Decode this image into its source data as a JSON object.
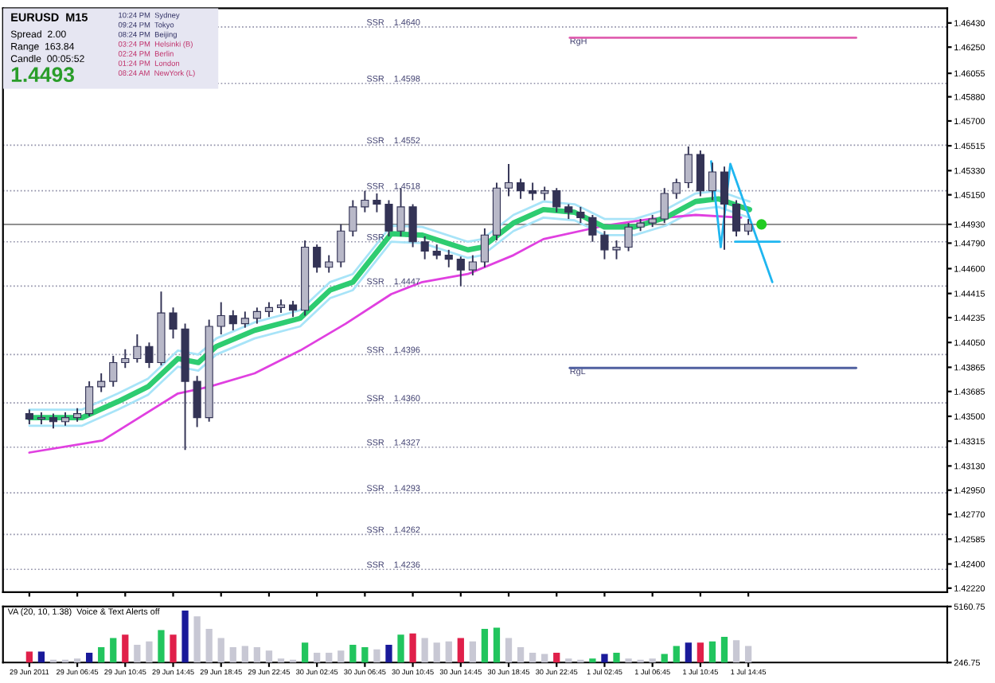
{
  "chart_data": [
    {
      "type": "candlestick",
      "title": "EURUSD  M15",
      "color": "#333355",
      "annotations": [
        "Spread  2.00",
        "Range  163.84",
        "Candle  00:05:52",
        "1.4493",
        "10:24 PM  Sydney",
        "09:24 PM  Tokyo",
        "08:24 PM  Beijing",
        "03:24 PM  Helsinki (B)",
        "02:24 PM  Berlin",
        "01:24 PM  London",
        "08:24 AM  NewYork (L)"
      ],
      "x": [
        "2011-06-29T02:45",
        "2011-06-29T03:45",
        "2011-06-29T04:45",
        "2011-06-29T05:45",
        "2011-06-29T06:45",
        "2011-06-29T07:45",
        "2011-06-29T08:45",
        "2011-06-29T09:45",
        "2011-06-29T10:45",
        "2011-06-29T11:45",
        "2011-06-29T12:45",
        "2011-06-29T13:45",
        "2011-06-29T14:45",
        "2011-06-29T15:45",
        "2011-06-29T16:45",
        "2011-06-29T17:45",
        "2011-06-29T18:45",
        "2011-06-29T19:45",
        "2011-06-29T20:45",
        "2011-06-29T21:45",
        "2011-06-29T22:45",
        "2011-06-29T23:45",
        "2011-06-30T00:45",
        "2011-06-30T01:45",
        "2011-06-30T02:45",
        "2011-06-30T03:45",
        "2011-06-30T04:45",
        "2011-06-30T05:45",
        "2011-06-30T06:45",
        "2011-06-30T07:45",
        "2011-06-30T08:45",
        "2011-06-30T09:45",
        "2011-06-30T10:45",
        "2011-06-30T11:45",
        "2011-06-30T12:45",
        "2011-06-30T13:45",
        "2011-06-30T14:45",
        "2011-06-30T15:45",
        "2011-06-30T16:45",
        "2011-06-30T17:45",
        "2011-06-30T18:45",
        "2011-06-30T19:45",
        "2011-06-30T20:45",
        "2011-06-30T21:45",
        "2011-06-30T22:45",
        "2011-06-30T23:45",
        "2011-07-01T00:45",
        "2011-07-01T01:45",
        "2011-07-01T02:45",
        "2011-07-01T03:45",
        "2011-07-01T04:45",
        "2011-07-01T05:45",
        "2011-07-01T06:45",
        "2011-07-01T07:45",
        "2011-07-01T08:45",
        "2011-07-01T09:45",
        "2011-07-01T10:45",
        "2011-07-01T11:45",
        "2011-07-01T12:45",
        "2011-07-01T13:45",
        "2011-07-01T14:45"
      ],
      "ohlc": [
        [
          1.4352,
          1.4355,
          1.4344,
          1.4348
        ],
        [
          1.4348,
          1.4353,
          1.4344,
          1.4349
        ],
        [
          1.4349,
          1.4352,
          1.4341,
          1.4346
        ],
        [
          1.4346,
          1.4353,
          1.4343,
          1.4349
        ],
        [
          1.4349,
          1.4356,
          1.4346,
          1.4352
        ],
        [
          1.4352,
          1.4376,
          1.435,
          1.4372
        ],
        [
          1.4372,
          1.4382,
          1.4368,
          1.4376
        ],
        [
          1.4376,
          1.4395,
          1.4372,
          1.439
        ],
        [
          1.439,
          1.44,
          1.4386,
          1.4393
        ],
        [
          1.4393,
          1.4411,
          1.439,
          1.4402
        ],
        [
          1.4402,
          1.4405,
          1.4386,
          1.439
        ],
        [
          1.439,
          1.4443,
          1.4388,
          1.4427
        ],
        [
          1.4427,
          1.4431,
          1.4408,
          1.4415
        ],
        [
          1.4415,
          1.4419,
          1.4325,
          1.4376
        ],
        [
          1.4376,
          1.438,
          1.4342,
          1.4349
        ],
        [
          1.4349,
          1.4422,
          1.4346,
          1.4417
        ],
        [
          1.4417,
          1.4435,
          1.4411,
          1.4425
        ],
        [
          1.4425,
          1.4429,
          1.4414,
          1.4419
        ],
        [
          1.4419,
          1.4428,
          1.4416,
          1.4423
        ],
        [
          1.4423,
          1.4431,
          1.4419,
          1.4428
        ],
        [
          1.4428,
          1.4435,
          1.4424,
          1.4431
        ],
        [
          1.4431,
          1.4437,
          1.4427,
          1.4433
        ],
        [
          1.4433,
          1.4436,
          1.4424,
          1.4429
        ],
        [
          1.4429,
          1.4481,
          1.4425,
          1.4476
        ],
        [
          1.4476,
          1.4478,
          1.4457,
          1.4461
        ],
        [
          1.4461,
          1.447,
          1.4457,
          1.4465
        ],
        [
          1.4465,
          1.4493,
          1.4461,
          1.4488
        ],
        [
          1.4488,
          1.4511,
          1.4484,
          1.4506
        ],
        [
          1.4506,
          1.4518,
          1.4502,
          1.4511
        ],
        [
          1.4511,
          1.4516,
          1.4502,
          1.4508
        ],
        [
          1.4508,
          1.4511,
          1.4484,
          1.4488
        ],
        [
          1.4488,
          1.452,
          1.4484,
          1.4506
        ],
        [
          1.4506,
          1.4508,
          1.4476,
          1.448
        ],
        [
          1.448,
          1.4484,
          1.4467,
          1.4473
        ],
        [
          1.4473,
          1.4478,
          1.4467,
          1.447
        ],
        [
          1.447,
          1.4474,
          1.4461,
          1.4467
        ],
        [
          1.4467,
          1.4469,
          1.4447,
          1.4459
        ],
        [
          1.4459,
          1.447,
          1.4455,
          1.4465
        ],
        [
          1.4465,
          1.449,
          1.4461,
          1.4485
        ],
        [
          1.4485,
          1.4524,
          1.4481,
          1.452
        ],
        [
          1.452,
          1.4538,
          1.4514,
          1.4524
        ],
        [
          1.4524,
          1.4527,
          1.4512,
          1.4518
        ],
        [
          1.4518,
          1.4524,
          1.4511,
          1.4516
        ],
        [
          1.4516,
          1.4521,
          1.4511,
          1.4518
        ],
        [
          1.4518,
          1.452,
          1.4502,
          1.4506
        ],
        [
          1.4506,
          1.4508,
          1.4497,
          1.4502
        ],
        [
          1.4502,
          1.4506,
          1.4494,
          1.4498
        ],
        [
          1.4498,
          1.45,
          1.448,
          1.4485
        ],
        [
          1.4485,
          1.4488,
          1.4467,
          1.4474
        ],
        [
          1.4474,
          1.4481,
          1.4467,
          1.4476
        ],
        [
          1.4476,
          1.4494,
          1.4473,
          1.4491
        ],
        [
          1.4491,
          1.4497,
          1.4488,
          1.4494
        ],
        [
          1.4494,
          1.45,
          1.4491,
          1.4497
        ],
        [
          1.4497,
          1.452,
          1.4494,
          1.4516
        ],
        [
          1.4516,
          1.4527,
          1.4512,
          1.4524
        ],
        [
          1.4524,
          1.4551,
          1.452,
          1.4545
        ],
        [
          1.4545,
          1.4548,
          1.4514,
          1.4518
        ],
        [
          1.4518,
          1.4539,
          1.4511,
          1.4532
        ],
        [
          1.4532,
          1.4536,
          1.4474,
          1.4508
        ],
        [
          1.4508,
          1.4511,
          1.4484,
          1.4488
        ],
        [
          1.4488,
          1.4497,
          1.4485,
          1.4493
        ]
      ],
      "series": [
        {
          "type": "line",
          "color": "#a8e4f8",
          "x": [
            "2011-06-29T02:45",
            "2011-06-29T07:09",
            "2011-06-29T10:09",
            "2011-06-29T12:39",
            "2011-06-29T15:09",
            "2011-06-29T16:51",
            "2011-06-29T18:21",
            "2011-06-29T21:33",
            "2011-06-30T01:21",
            "2011-06-30T03:51",
            "2011-06-30T05:45",
            "2011-06-30T08:57",
            "2011-06-30T11:33",
            "2011-06-30T15:21",
            "2011-06-30T16:33",
            "2011-06-30T19:09",
            "2011-06-30T21:39",
            "2011-07-01T00:15",
            "2011-07-01T02:45",
            "2011-07-01T05:15",
            "2011-07-01T07:51",
            "2011-07-01T10:21",
            "2011-07-01T12:15",
            "2011-07-01T14:09",
            "2011-07-01T14:51"
          ],
          "values": [
            1.4355,
            1.4355,
            1.4367,
            1.4378,
            1.4399,
            1.4396,
            1.4408,
            1.442,
            1.4429,
            1.445,
            1.4456,
            1.4492,
            1.4491,
            1.448,
            1.4482,
            1.45,
            1.451,
            1.4508,
            1.4497,
            1.4497,
            1.4504,
            1.4516,
            1.4518,
            1.4512,
            1.451
          ]
        },
        {
          "type": "line",
          "color": "#a8e4f8",
          "x": [
            "2011-06-29T02:45",
            "2011-06-29T07:09",
            "2011-06-29T10:09",
            "2011-06-29T12:39",
            "2011-06-29T15:09",
            "2011-06-29T16:51",
            "2011-06-29T18:21",
            "2011-06-29T21:33",
            "2011-06-30T01:21",
            "2011-06-30T03:51",
            "2011-06-30T05:45",
            "2011-06-30T08:57",
            "2011-06-30T11:33",
            "2011-06-30T15:21",
            "2011-06-30T16:33",
            "2011-06-30T19:09",
            "2011-06-30T21:39",
            "2011-07-01T00:15",
            "2011-07-01T02:45",
            "2011-07-01T05:15",
            "2011-07-01T07:51",
            "2011-07-01T10:21",
            "2011-07-01T12:15",
            "2011-07-01T14:09",
            "2011-07-01T14:51"
          ],
          "values": [
            1.4343,
            1.4343,
            1.4355,
            1.4366,
            1.4387,
            1.4384,
            1.4396,
            1.4408,
            1.4417,
            1.4438,
            1.4444,
            1.448,
            1.4479,
            1.4468,
            1.447,
            1.4488,
            1.4498,
            1.4496,
            1.4485,
            1.4485,
            1.4492,
            1.4504,
            1.4506,
            1.45,
            1.4498
          ]
        },
        {
          "type": "line",
          "color": "#e040e0",
          "x": [
            "2011-06-29T02:45",
            "2011-06-29T08:51",
            "2011-06-29T15:09",
            "2011-06-29T17:45",
            "2011-06-29T21:33",
            "2011-06-30T01:21",
            "2011-06-30T05:09",
            "2011-06-30T08:57",
            "2011-06-30T11:33",
            "2011-06-30T15:21",
            "2011-06-30T19:09",
            "2011-06-30T21:39",
            "2011-07-01T02:45",
            "2011-07-01T06:33",
            "2011-07-01T10:21",
            "2011-07-01T14:09"
          ],
          "values": [
            1.4323,
            1.4332,
            1.4367,
            1.4372,
            1.4382,
            1.4399,
            1.4419,
            1.4441,
            1.445,
            1.4456,
            1.447,
            1.4482,
            1.4492,
            1.4497,
            1.45,
            1.4498
          ]
        },
        {
          "type": "line",
          "color": "#2ecc71",
          "x": [
            "2011-06-29T02:45",
            "2011-06-29T07:09",
            "2011-06-29T10:09",
            "2011-06-29T12:39",
            "2011-06-29T15:09",
            "2011-06-29T16:51",
            "2011-06-29T18:21",
            "2011-06-29T21:33",
            "2011-06-30T01:21",
            "2011-06-30T03:51",
            "2011-06-30T05:45",
            "2011-06-30T08:57",
            "2011-06-30T11:33",
            "2011-06-30T15:21",
            "2011-06-30T16:33",
            "2011-06-30T19:09",
            "2011-06-30T21:39",
            "2011-07-01T00:15",
            "2011-07-01T02:45",
            "2011-07-01T05:15",
            "2011-07-01T07:51",
            "2011-07-01T10:21",
            "2011-07-01T12:15",
            "2011-07-01T14:09",
            "2011-07-01T14:51"
          ],
          "values": [
            1.4349,
            1.4349,
            1.4361,
            1.4372,
            1.4393,
            1.439,
            1.4402,
            1.4414,
            1.4423,
            1.4444,
            1.445,
            1.4486,
            1.4485,
            1.4474,
            1.4476,
            1.4494,
            1.4504,
            1.4502,
            1.4491,
            1.4491,
            1.4498,
            1.451,
            1.4512,
            1.4506,
            1.4504
          ]
        },
        {
          "type": "line",
          "name": "RgH",
          "color": "#e060b0",
          "x": [
            "2011-06-30T23:51",
            "2011-07-01T23:45"
          ],
          "values": [
            1.4632,
            1.4632
          ]
        },
        {
          "type": "line",
          "name": "RgL",
          "color": "#5060a0",
          "x": [
            "2011-06-30T23:51",
            "2011-07-01T23:45"
          ],
          "values": [
            1.4386,
            1.4386
          ]
        },
        {
          "type": "line",
          "color": "#1fb6f0",
          "x": [
            "2011-07-01T11:39",
            "2011-07-01T12:27",
            "2011-07-01T13:15",
            "2011-07-01T16:45"
          ],
          "values": [
            1.454,
            1.4476,
            1.4538,
            1.445
          ]
        },
        {
          "type": "line",
          "color": "#1fb6f0",
          "x": [
            "2011-07-01T13:39",
            "2011-07-01T17:21"
          ],
          "values": [
            1.448,
            1.448
          ]
        },
        {
          "type": "scatter",
          "color": "#22cc22",
          "x": [
            "2011-07-01T15:51"
          ],
          "values": [
            1.4493
          ]
        }
      ],
      "ref_lines": [
        {
          "axis": "y",
          "value": 1.464,
          "label": "SSR    1.4640",
          "color": "#9090a8",
          "line_style": "dotted"
        },
        {
          "axis": "y",
          "value": 1.4598,
          "label": "SSR    1.4598",
          "color": "#9090a8",
          "line_style": "dotted"
        },
        {
          "axis": "y",
          "value": 1.4552,
          "label": "SSR    1.4552",
          "color": "#9090a8",
          "line_style": "dotted"
        },
        {
          "axis": "y",
          "value": 1.4518,
          "label": "SSR    1.4518",
          "color": "#9090a8",
          "line_style": "dotted"
        },
        {
          "axis": "y",
          "value": 1.448,
          "label": "SSR",
          "color": "#9090a8",
          "line_style": "dotted"
        },
        {
          "axis": "y",
          "value": 1.4447,
          "label": "SSR    1.4447",
          "color": "#9090a8",
          "line_style": "dotted"
        },
        {
          "axis": "y",
          "value": 1.4396,
          "label": "SSR    1.4396",
          "color": "#9090a8",
          "line_style": "dotted"
        },
        {
          "axis": "y",
          "value": 1.436,
          "label": "SSR    1.4360",
          "color": "#9090a8",
          "line_style": "dotted"
        },
        {
          "axis": "y",
          "value": 1.4327,
          "label": "SSR    1.4327",
          "color": "#9090a8",
          "line_style": "dotted"
        },
        {
          "axis": "y",
          "value": 1.4293,
          "label": "SSR    1.4293",
          "color": "#9090a8",
          "line_style": "dotted"
        },
        {
          "axis": "y",
          "value": 1.4262,
          "label": "SSR    1.4262",
          "color": "#9090a8",
          "line_style": "dotted"
        },
        {
          "axis": "y",
          "value": 1.4236,
          "label": "SSR    1.4236",
          "color": "#9090a8",
          "line_style": "dotted"
        },
        {
          "axis": "y",
          "value": 1.4493,
          "color": "#808080",
          "line_style": "solid"
        }
      ],
      "xlim": [
        "2011-06-29T00:33",
        "2011-07-02T07:21"
      ],
      "xticks": [
        {
          "value": "2011-06-29T02:45",
          "label": null
        },
        {
          "value": "2011-06-29T06:45",
          "label": null
        },
        {
          "value": "2011-06-29T10:45",
          "label": null
        },
        {
          "value": "2011-06-29T14:45",
          "label": null
        },
        {
          "value": "2011-06-29T18:45",
          "label": null
        },
        {
          "value": "2011-06-29T22:45",
          "label": null
        },
        {
          "value": "2011-06-30T02:45",
          "label": null
        },
        {
          "value": "2011-06-30T06:45",
          "label": null
        },
        {
          "value": "2011-06-30T10:45",
          "label": null
        },
        {
          "value": "2011-06-30T14:45",
          "label": null
        },
        {
          "value": "2011-06-30T18:45",
          "label": null
        },
        {
          "value": "2011-06-30T22:45",
          "label": null
        },
        {
          "value": "2011-07-01T02:45",
          "label": null
        },
        {
          "value": "2011-07-01T06:45",
          "label": null
        },
        {
          "value": "2011-07-01T10:45",
          "label": null
        },
        {
          "value": "2011-07-01T14:45",
          "label": null
        }
      ],
      "ylim": [
        1.4219,
        1.4654
      ],
      "yticks": [
        {
          "value": 1.4643,
          "label": "1.46430"
        },
        {
          "value": 1.4625,
          "label": "1.46250"
        },
        {
          "value": 1.46055,
          "label": "1.46055"
        },
        {
          "value": 1.4588,
          "label": "1.45880"
        },
        {
          "value": 1.457,
          "label": "1.45700"
        },
        {
          "value": 1.45515,
          "label": "1.45515"
        },
        {
          "value": 1.4533,
          "label": "1.45330"
        },
        {
          "value": 1.4515,
          "label": "1.45150"
        },
        {
          "value": 1.4493,
          "label": "1.44930"
        },
        {
          "value": 1.4479,
          "label": "1.44790"
        },
        {
          "value": 1.446,
          "label": "1.44600"
        },
        {
          "value": 1.44415,
          "label": "1.44415"
        },
        {
          "value": 1.44235,
          "label": "1.44235"
        },
        {
          "value": 1.4405,
          "label": "1.44050"
        },
        {
          "value": 1.43865,
          "label": "1.43865"
        },
        {
          "value": 1.43685,
          "label": "1.43685"
        },
        {
          "value": 1.435,
          "label": "1.43500"
        },
        {
          "value": 1.43315,
          "label": "1.43315"
        },
        {
          "value": 1.4313,
          "label": "1.43130"
        },
        {
          "value": 1.4295,
          "label": "1.42950"
        },
        {
          "value": 1.4277,
          "label": "1.42770"
        },
        {
          "value": 1.42585,
          "label": "1.42585"
        },
        {
          "value": 1.424,
          "label": "1.42400"
        },
        {
          "value": 1.4222,
          "label": "1.42220"
        }
      ],
      "tick_labels": "y"
    },
    {
      "type": "bar",
      "title": "VA (20, 10, 1.38)  Voice & Text Alerts off",
      "x": [
        "2011-06-29T02:45",
        "2011-06-29T03:45",
        "2011-06-29T04:45",
        "2011-06-29T05:45",
        "2011-06-29T06:45",
        "2011-06-29T07:45",
        "2011-06-29T08:45",
        "2011-06-29T09:45",
        "2011-06-29T10:45",
        "2011-06-29T11:45",
        "2011-06-29T12:45",
        "2011-06-29T13:45",
        "2011-06-29T14:45",
        "2011-06-29T15:45",
        "2011-06-29T16:45",
        "2011-06-29T17:45",
        "2011-06-29T18:45",
        "2011-06-29T19:45",
        "2011-06-29T20:45",
        "2011-06-29T21:45",
        "2011-06-29T22:45",
        "2011-06-29T23:45",
        "2011-06-30T00:45",
        "2011-06-30T01:45",
        "2011-06-30T02:45",
        "2011-06-30T03:45",
        "2011-06-30T04:45",
        "2011-06-30T05:45",
        "2011-06-30T06:45",
        "2011-06-30T07:45",
        "2011-06-30T08:45",
        "2011-06-30T09:45",
        "2011-06-30T10:45",
        "2011-06-30T11:45",
        "2011-06-30T12:45",
        "2011-06-30T13:45",
        "2011-06-30T14:45",
        "2011-06-30T15:45",
        "2011-06-30T16:45",
        "2011-06-30T17:45",
        "2011-06-30T18:45",
        "2011-06-30T19:45",
        "2011-06-30T20:45",
        "2011-06-30T21:45",
        "2011-06-30T22:45",
        "2011-06-30T23:45",
        "2011-07-01T00:45",
        "2011-07-01T01:45",
        "2011-07-01T02:45",
        "2011-07-01T03:45",
        "2011-07-01T04:45",
        "2011-07-01T05:45",
        "2011-07-01T06:45",
        "2011-07-01T07:45",
        "2011-07-01T08:45",
        "2011-07-01T09:45",
        "2011-07-01T10:45",
        "2011-07-01T11:45",
        "2011-07-01T12:45",
        "2011-07-01T13:45",
        "2011-07-01T14:45"
      ],
      "values": [
        1200,
        1200,
        500,
        500,
        600,
        1100,
        1600,
        2400,
        2700,
        1800,
        2100,
        3100,
        2700,
        4800,
        4300,
        3200,
        2400,
        1600,
        1700,
        1600,
        1300,
        600,
        500,
        2000,
        1100,
        1100,
        1300,
        1800,
        1600,
        1400,
        1800,
        2700,
        2800,
        2400,
        2000,
        2100,
        2400,
        2100,
        3200,
        3300,
        2400,
        1600,
        1100,
        1000,
        1100,
        600,
        500,
        600,
        1000,
        1100,
        600,
        500,
        600,
        1000,
        1700,
        2000,
        2000,
        2100,
        2500,
        2200,
        1700
      ],
      "colors": [
        "#e0204a",
        "#1a1a9a",
        "#c8c8d4",
        "#c8c8d4",
        "#c8c8d4",
        "#1a1a9a",
        "#22c55e",
        "#22c55e",
        "#e0204a",
        "#c8c8d4",
        "#c8c8d4",
        "#22c55e",
        "#e0204a",
        "#1a1a9a",
        "#c8c8d4",
        "#c8c8d4",
        "#c8c8d4",
        "#c8c8d4",
        "#c8c8d4",
        "#c8c8d4",
        "#c8c8d4",
        "#c8c8d4",
        "#c8c8d4",
        "#22c55e",
        "#c8c8d4",
        "#c8c8d4",
        "#c8c8d4",
        "#22c55e",
        "#22c55e",
        "#c8c8d4",
        "#1a1a9a",
        "#22c55e",
        "#e0204a",
        "#c8c8d4",
        "#c8c8d4",
        "#c8c8d4",
        "#e0204a",
        "#c8c8d4",
        "#22c55e",
        "#22c55e",
        "#c8c8d4",
        "#c8c8d4",
        "#c8c8d4",
        "#c8c8d4",
        "#e0204a",
        "#c8c8d4",
        "#c8c8d4",
        "#22c55e",
        "#1a1a9a",
        "#22c55e",
        "#c8c8d4",
        "#c8c8d4",
        "#c8c8d4",
        "#22c55e",
        "#22c55e",
        "#1a1a9a",
        "#e0204a",
        "#22c55e",
        "#22c55e",
        "#c8c8d4",
        "#c8c8d4"
      ],
      "xlim": [
        "2011-06-29T00:33",
        "2011-07-02T07:21"
      ],
      "xticks": [
        {
          "value": "2011-06-29T02:45",
          "label": "29 Jun 2011"
        },
        {
          "value": "2011-06-29T06:45",
          "label": "29 Jun 06:45"
        },
        {
          "value": "2011-06-29T10:45",
          "label": "29 Jun 10:45"
        },
        {
          "value": "2011-06-29T14:45",
          "label": "29 Jun 14:45"
        },
        {
          "value": "2011-06-29T18:45",
          "label": "29 Jun 18:45"
        },
        {
          "value": "2011-06-29T22:45",
          "label": "29 Jun 22:45"
        },
        {
          "value": "2011-06-30T02:45",
          "label": "30 Jun 02:45"
        },
        {
          "value": "2011-06-30T06:45",
          "label": "30 Jun 06:45"
        },
        {
          "value": "2011-06-30T10:45",
          "label": "30 Jun 10:45"
        },
        {
          "value": "2011-06-30T14:45",
          "label": "30 Jun 14:45"
        },
        {
          "value": "2011-06-30T18:45",
          "label": "30 Jun 18:45"
        },
        {
          "value": "2011-06-30T22:45",
          "label": "30 Jun 22:45"
        },
        {
          "value": "2011-07-01T02:45",
          "label": "1 Jul 02:45"
        },
        {
          "value": "2011-07-01T06:45",
          "label": "1 Jul 06:45"
        },
        {
          "value": "2011-07-01T10:45",
          "label": "1 Jul 10:45"
        },
        {
          "value": "2011-07-01T14:45",
          "label": "1 Jul 14:45"
        }
      ],
      "ylim": [
        246.75,
        5160.75
      ],
      "yticks": [
        246.75,
        5160.75
      ]
    }
  ]
}
